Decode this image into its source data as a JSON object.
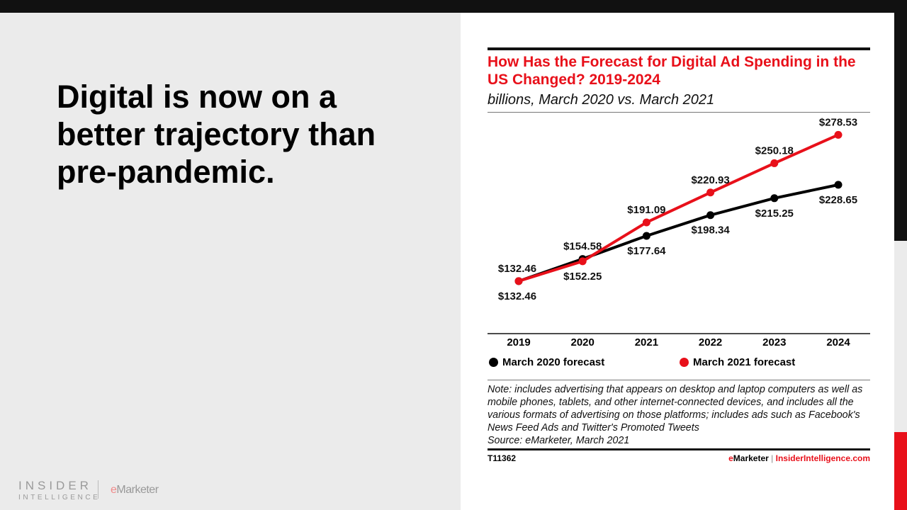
{
  "slide": {
    "headline": "Digital is now on a better trajectory than pre-pandemic.",
    "logo": {
      "line1": "INSIDER",
      "line2": "INTELLIGENCE",
      "em_e": "e",
      "em_rest": "Marketer"
    }
  },
  "chart_data": {
    "type": "line",
    "title": "How Has the Forecast for Digital Ad Spending in the US Changed? 2019-2024",
    "subtitle": "billions, March 2020 vs. March 2021",
    "categories": [
      "2019",
      "2020",
      "2021",
      "2022",
      "2023",
      "2024"
    ],
    "ylim": [
      80,
      300
    ],
    "grid": false,
    "legend_placement": "bottom",
    "series": [
      {
        "name": "March 2020 forecast",
        "color": "#000000",
        "values": [
          132.46,
          154.58,
          177.64,
          198.34,
          215.25,
          228.65
        ],
        "labels": [
          "$132.46",
          "$154.58",
          "$177.64",
          "$198.34",
          "$215.25",
          "$228.65"
        ]
      },
      {
        "name": "March 2021 forecast",
        "color": "#e8101a",
        "values": [
          132.46,
          152.25,
          191.09,
          220.93,
          250.18,
          278.53
        ],
        "labels": [
          "$132.46",
          "$152.25",
          "$191.09",
          "$220.93",
          "$250.18",
          "$278.53"
        ]
      }
    ]
  },
  "footer": {
    "note": "Note: includes advertising that appears on desktop and laptop computers as well as mobile phones, tablets, and other internet-connected devices, and includes all the various formats of advertising on those platforms; includes ads such as Facebook's News Feed Ads and Twitter's Promoted Tweets",
    "source": "Source: eMarketer, March 2021",
    "code": "T11362",
    "brand_e": "e",
    "brand_m": "Marketer",
    "brand_sep": " | ",
    "brand_site": "InsiderIntelligence.com"
  },
  "colors": {
    "accent": "#e8101a",
    "dark": "#111111"
  }
}
